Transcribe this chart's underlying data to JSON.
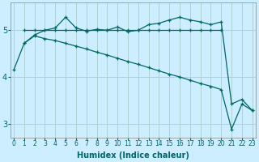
{
  "xlabel": "Humidex (Indice chaleur)",
  "bg_color": "#cceeff",
  "line_color": "#006666",
  "grid_color": "#aacccc",
  "line1_x": [
    1,
    2,
    3,
    4,
    5,
    6,
    7,
    8,
    9,
    10,
    11,
    12,
    13,
    14,
    15,
    16,
    17,
    18,
    19,
    20
  ],
  "line1_y": [
    5.0,
    5.0,
    5.0,
    5.0,
    5.0,
    5.0,
    5.0,
    5.0,
    5.0,
    5.0,
    5.0,
    5.0,
    5.0,
    5.0,
    5.0,
    5.0,
    5.0,
    5.0,
    5.0,
    5.0
  ],
  "line2_x": [
    0,
    1,
    2,
    3,
    4,
    5,
    6,
    7,
    8,
    9,
    10,
    11,
    12,
    13,
    14,
    15,
    16,
    17,
    18,
    19,
    20,
    21,
    22,
    23
  ],
  "line2_y": [
    4.15,
    4.72,
    4.9,
    5.0,
    5.05,
    5.28,
    5.05,
    4.98,
    5.02,
    5.0,
    5.07,
    4.97,
    5.0,
    5.12,
    5.15,
    5.22,
    5.28,
    5.22,
    5.18,
    5.12,
    5.18,
    3.42,
    3.52,
    3.28
  ],
  "line3_x": [
    1,
    2,
    3,
    4,
    5,
    6,
    7,
    8,
    9,
    10,
    11,
    12,
    13,
    14,
    15,
    16,
    17,
    18,
    19,
    20,
    21,
    22,
    23
  ],
  "line3_y": [
    4.72,
    4.88,
    4.82,
    4.78,
    4.72,
    4.66,
    4.6,
    4.53,
    4.47,
    4.4,
    4.33,
    4.27,
    4.2,
    4.13,
    4.06,
    4.0,
    3.93,
    3.86,
    3.8,
    3.73,
    2.88,
    3.42,
    3.28
  ],
  "xlim": [
    0,
    23
  ],
  "ylim": [
    2.7,
    5.6
  ],
  "yticks": [
    3,
    4,
    5
  ],
  "xticks": [
    0,
    1,
    2,
    3,
    4,
    5,
    6,
    7,
    8,
    9,
    10,
    11,
    12,
    13,
    14,
    15,
    16,
    17,
    18,
    19,
    20,
    21,
    22,
    23
  ],
  "xtick_labels": [
    "0",
    "1",
    "2",
    "3",
    "4",
    "5",
    "6",
    "7",
    "8",
    "9",
    "10",
    "11",
    "12",
    "13",
    "14",
    "15",
    "16",
    "17",
    "18",
    "19",
    "20",
    "21",
    "22",
    "23"
  ],
  "marker": "+",
  "marker_size": 3.5,
  "linewidth": 0.9,
  "xlabel_fontsize": 7,
  "tick_fontsize": 5.5,
  "ytick_fontsize": 7
}
